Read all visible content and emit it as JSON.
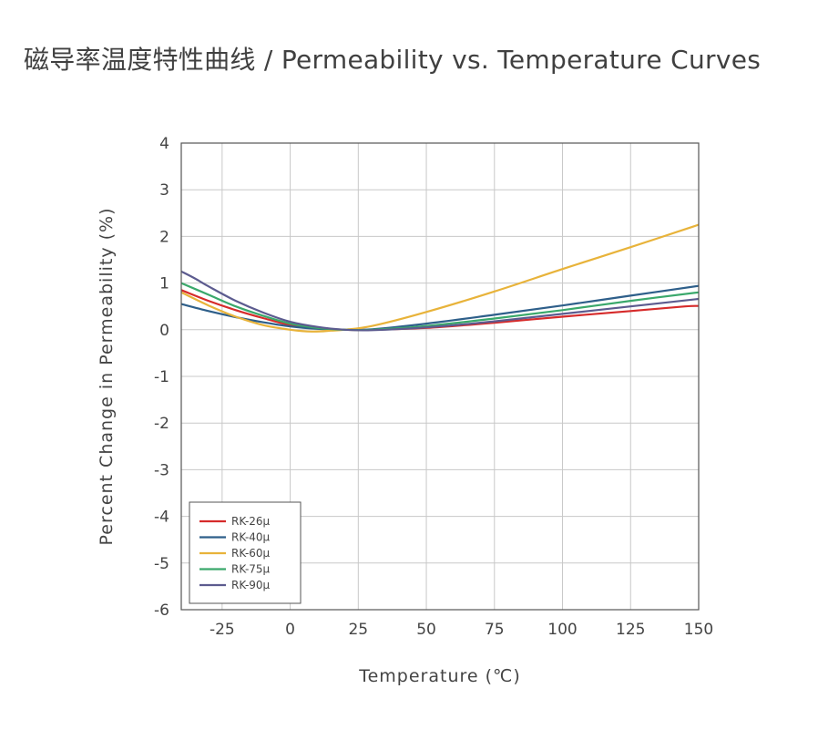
{
  "page": {
    "title": "磁导率温度特性曲线 / Permeability vs. Temperature Curves"
  },
  "chart_data": {
    "type": "line",
    "title": "磁导率温度特性曲线 / Permeability vs. Temperature Curves",
    "xlabel": "Temperature (℃)",
    "ylabel": "Percent Change in Permeability (%)",
    "xlim": [
      -40,
      150
    ],
    "ylim": [
      -6,
      4
    ],
    "xticks": [
      -25,
      0,
      25,
      50,
      75,
      100,
      125,
      150
    ],
    "yticks": [
      4,
      3,
      2,
      1,
      0,
      -1,
      -2,
      -3,
      -4,
      -5,
      -6
    ],
    "grid": true,
    "legend_position": "bottom-left",
    "series": [
      {
        "name": "RK-26μ",
        "color": "#d62b2b",
        "x": [
          -40,
          -30,
          -20,
          -10,
          0,
          10,
          20,
          30,
          50,
          75,
          100,
          125,
          145,
          150
        ],
        "y": [
          0.85,
          0.62,
          0.42,
          0.25,
          0.1,
          0.03,
          0.0,
          0.0,
          0.04,
          0.15,
          0.28,
          0.4,
          0.5,
          0.51
        ]
      },
      {
        "name": "RK-40μ",
        "color": "#2e5f8a",
        "x": [
          -40,
          -30,
          -20,
          -10,
          0,
          10,
          20,
          30,
          50,
          75,
          100,
          125,
          150
        ],
        "y": [
          0.55,
          0.4,
          0.27,
          0.16,
          0.07,
          0.02,
          0.0,
          0.01,
          0.13,
          0.32,
          0.52,
          0.73,
          0.94
        ]
      },
      {
        "name": "RK-60μ",
        "color": "#e8b33a",
        "x": [
          -40,
          -30,
          -20,
          -10,
          0,
          8,
          15,
          20,
          30,
          50,
          75,
          100,
          125,
          150
        ],
        "y": [
          0.8,
          0.52,
          0.28,
          0.1,
          0.0,
          -0.04,
          -0.02,
          0.0,
          0.08,
          0.38,
          0.82,
          1.3,
          1.77,
          2.25
        ]
      },
      {
        "name": "RK-75μ",
        "color": "#3aa86b",
        "x": [
          -40,
          -30,
          -20,
          -10,
          0,
          10,
          20,
          30,
          50,
          75,
          100,
          125,
          150
        ],
        "y": [
          1.0,
          0.75,
          0.5,
          0.3,
          0.13,
          0.04,
          0.0,
          0.0,
          0.08,
          0.24,
          0.42,
          0.62,
          0.8
        ]
      },
      {
        "name": "RK-90μ",
        "color": "#5c5b8f",
        "x": [
          -40,
          -35,
          -30,
          -20,
          -10,
          0,
          10,
          20,
          30,
          50,
          75,
          100,
          125,
          150
        ],
        "y": [
          1.25,
          1.1,
          0.93,
          0.62,
          0.37,
          0.17,
          0.06,
          0.0,
          -0.01,
          0.05,
          0.18,
          0.34,
          0.5,
          0.66
        ]
      }
    ]
  }
}
